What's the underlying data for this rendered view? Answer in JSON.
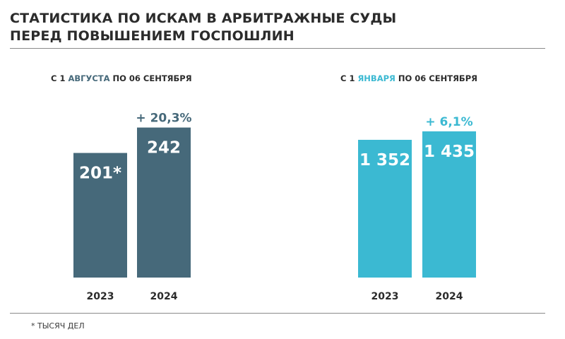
{
  "title": {
    "line1": "СТАТИСТИКА ПО ИСКАМ В АРБИТРАЖНЫЕ СУДЫ",
    "line2": "ПЕРЕД ПОВЫШЕНИЕМ ГОСПОШЛИН"
  },
  "footnote": "* ТЫСЯЧ  ДЕЛ",
  "colors": {
    "left_bars": "#46697a",
    "right_bars": "#3bb9d2"
  },
  "chart_data": [
    {
      "type": "bar",
      "title_parts": [
        "С 1 ",
        "АВГУСТА",
        " ПО 06 СЕНТЯБРЯ"
      ],
      "categories": [
        "2023",
        "2024"
      ],
      "values": [
        201,
        242
      ],
      "value_labels": [
        "201*",
        "242"
      ],
      "change_label": "+ 20,3%",
      "ylim": [
        0,
        270
      ],
      "color": "#46697a",
      "grid": false
    },
    {
      "type": "bar",
      "title_parts": [
        "С 1 ",
        "ЯНВАРЯ",
        " ПО 06 СЕНТЯБРЯ"
      ],
      "categories": [
        "2023",
        "2024"
      ],
      "values": [
        1352,
        1435
      ],
      "value_labels": [
        "1 352",
        "1 435"
      ],
      "change_label": "+ 6,1%",
      "ylim": [
        0,
        1643
      ],
      "color": "#3bb9d2",
      "grid": false
    }
  ]
}
